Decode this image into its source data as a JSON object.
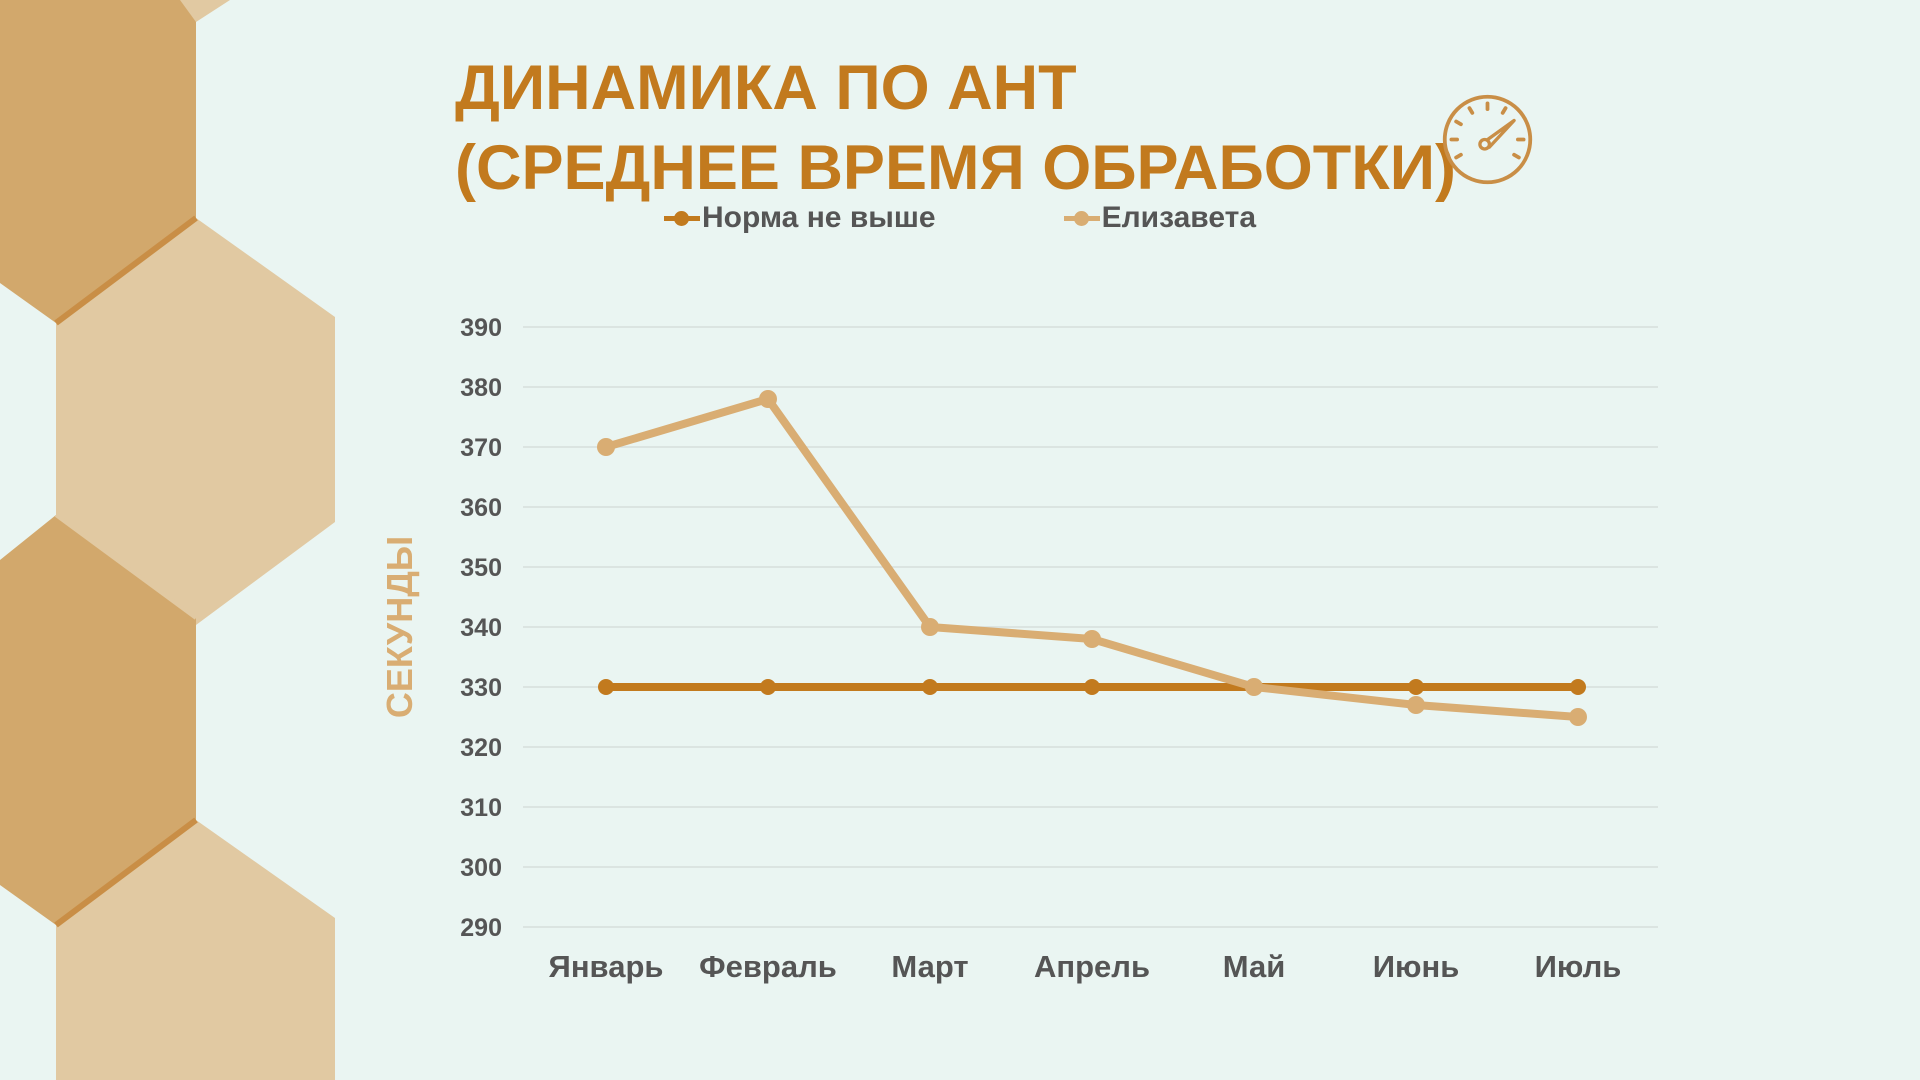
{
  "title_lines": [
    "ДИНАМИКА ПО АНТ",
    "(СРЕДНЕЕ ВРЕМЯ ОБРАБОТКИ)"
  ],
  "icons": {
    "title_icon": "speedometer-icon"
  },
  "colors": {
    "accent": "#c27a1e",
    "series_norm": "#c27a1e",
    "series_eliz": "#d9ad73",
    "background": "#eaf5f2"
  },
  "chart_data": {
    "type": "line",
    "categories": [
      "Январь",
      "Февраль",
      "Март",
      "Апрель",
      "Май",
      "Июнь",
      "Июль"
    ],
    "series": [
      {
        "name": "Норма не выше",
        "values": [
          330,
          330,
          330,
          330,
          330,
          330,
          330
        ]
      },
      {
        "name": "Елизавета",
        "values": [
          370,
          378,
          340,
          338,
          330,
          327,
          325
        ]
      }
    ],
    "ylabel": "СЕКУНДЫ",
    "xlabel": "",
    "ylim": [
      290,
      390
    ],
    "yticks": [
      390,
      380,
      370,
      360,
      350,
      340,
      330,
      320,
      310,
      300,
      290
    ],
    "grid": true,
    "legend": "top"
  }
}
